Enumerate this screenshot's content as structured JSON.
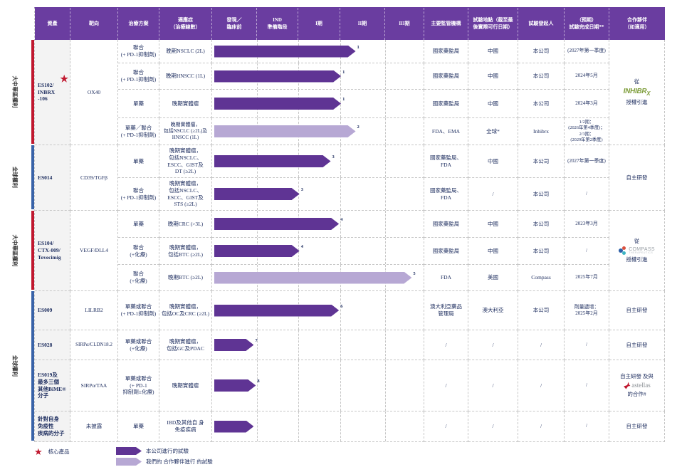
{
  "colors": {
    "header_bg": "#6a3da0",
    "company_arrow": "#5f3494",
    "partner_arrow": "#b7a8d4",
    "core_red": "#c0182f",
    "global_blue": "#3963a8"
  },
  "header": {
    "columns": [
      "資產",
      "靶向",
      "治療方案",
      "適應症\n（治療線數）",
      "發現／\n臨床前",
      "IND\n準備階段",
      "I期",
      "II期",
      "III期",
      "主要監管機構",
      "試驗地點（截至最\n後實際可行日期）",
      "試驗發起人",
      "（預期）\n試驗完成日期**",
      "合作夥伴\n（如適用）"
    ]
  },
  "side_groups": [
    {
      "label": "大中華區權利",
      "color": "#c0182f"
    },
    {
      "label": "全球權利",
      "color": "#3963a8"
    },
    {
      "label": "大中華區權利",
      "color": "#c0182f"
    },
    {
      "label": "全球權利",
      "color": "#3963a8"
    }
  ],
  "sections": [
    {
      "asset": "ES102/\nINBRX\n-106",
      "target": "OX40",
      "partner": {
        "pre": "從",
        "logo": "inhibrx",
        "post": "授權引進"
      },
      "trials": [
        {
          "regimen": "聯合\n(+ PD-1抑制劑)",
          "indication": "晚期NSCLC (2L)",
          "arrow": {
            "width_pct": 68,
            "type": "company",
            "note": "1"
          },
          "regulator": "國家藥監局",
          "location": "中國",
          "sponsor": "本公司",
          "completion": "(2027年第一季度)"
        },
        {
          "regimen": "聯合\n(+ PD-1抑制劑)",
          "indication": "晚期HNSCC (1L)",
          "arrow": {
            "width_pct": 61,
            "type": "company",
            "note": "1"
          },
          "regulator": "國家藥監局",
          "location": "中國",
          "sponsor": "本公司",
          "completion": "2024年5月"
        },
        {
          "regimen": "單藥",
          "indication": "晚期實體瘤",
          "arrow": {
            "width_pct": 61,
            "type": "company",
            "note": "1"
          },
          "regulator": "國家藥監局",
          "location": "中國",
          "sponsor": "本公司",
          "completion": "2024年3月"
        },
        {
          "regimen": "單藥／聯合\n(+ PD-1抑制劑)",
          "indication": "晚期實體瘤，\n包括NSCLC (≥2L)及\nHNSCC (1L)",
          "arrow": {
            "width_pct": 68,
            "type": "partner",
            "note": "2"
          },
          "regulator": "FDA、EMA",
          "location": "全球*",
          "sponsor": "Inhibrx",
          "completion": "1/2期：\n(2026年第4季度)；\n2/3期：\n(2029年第2季度)"
        }
      ]
    },
    {
      "asset": "ES014",
      "target": "CD39/TGFβ",
      "partner": {
        "text": "自主研發"
      },
      "trials": [
        {
          "regimen": "單藥",
          "indication": "晚期實體瘤，\n包括NSCLC、\nESCC、GIST及\nDT (≥2L)",
          "arrow": {
            "width_pct": 56,
            "type": "company",
            "note": "3"
          },
          "regulator": "國家藥監局、\nFDA",
          "location": "中國",
          "sponsor": "本公司",
          "completion": "(2027年第一季度)"
        },
        {
          "regimen": "聯合\n(+ PD-1抑制劑)",
          "indication": "晚期實體瘤，\n包括NSCLC、\nESCC、GIST及\nSTS (≥2L)",
          "arrow": {
            "width_pct": 41,
            "type": "company",
            "note": "3"
          },
          "regulator": "國家藥監局、\nFDA",
          "location": "/",
          "sponsor": "本公司",
          "completion": "/"
        }
      ]
    },
    {
      "asset": "ES104/\nCTX-009/\nTovecimig",
      "target": "VEGF/DLL4",
      "partner": {
        "pre": "從",
        "logo": "compass",
        "post": "授權引進"
      },
      "trials": [
        {
          "regimen": "單藥",
          "indication": "晚期CRC (>3L)",
          "arrow": {
            "width_pct": 60,
            "type": "company",
            "note": "4"
          },
          "regulator": "國家藥監局",
          "location": "中國",
          "sponsor": "本公司",
          "completion": "2023年3月"
        },
        {
          "regimen": "聯合\n(+化療)",
          "indication": "晚期實體瘤，\n包括BTC (≥2L)",
          "arrow": {
            "width_pct": 41,
            "type": "company",
            "note": "4"
          },
          "regulator": "國家藥監局",
          "location": "中國",
          "sponsor": "本公司",
          "completion": "/"
        },
        {
          "regimen": "聯合\n(+化療)",
          "indication": "晚期BTC (≥2L)",
          "arrow": {
            "width_pct": 95,
            "type": "partner",
            "note": "5"
          },
          "regulator": "FDA",
          "location": "美國",
          "sponsor": "Compass",
          "completion": "2025年7月"
        }
      ]
    },
    {
      "asset": "ES009",
      "target": "LILRB2",
      "partner": {
        "text": "自主研發"
      },
      "trials": [
        {
          "regimen": "單藥或聯合\n(+ PD-1抑制劑)",
          "indication": "晚期實體瘤，\n包括OC及CRC (≥2L)",
          "arrow": {
            "width_pct": 60,
            "type": "company",
            "note": "6"
          },
          "regulator": "澳大利亞藥品\n管理局",
          "location": "澳大利亞",
          "sponsor": "本公司",
          "completion": "劑量遞增：\n2025年2月"
        }
      ]
    },
    {
      "asset": "ES028",
      "target": "SIRPα/CLDN18.2",
      "partner": {
        "text": "自主研發"
      },
      "trials": [
        {
          "regimen": "單藥或聯合\n(+化療)",
          "indication": "晚期實體瘤，\n包括GC及PDAC",
          "arrow": {
            "width_pct": 19,
            "type": "company",
            "note": "7"
          },
          "regulator": "/",
          "location": "/",
          "sponsor": "/",
          "completion": "/"
        }
      ]
    },
    {
      "asset": "ES019及\n最多三個\n其他BiME®\n分子",
      "target": "SIRPα/TAA",
      "partner": {
        "pre": "自主研發 及與",
        "logo": "astellas",
        "post": "的合作#"
      },
      "trials": [
        {
          "regimen": "單藥或聯合\n(+ PD-1\n抑制劑±化療)",
          "indication": "晚期實體瘤",
          "arrow": {
            "width_pct": 20,
            "type": "company",
            "note": "8"
          },
          "regulator": "/",
          "location": "/",
          "sponsor": "/",
          "completion": "/"
        }
      ]
    },
    {
      "asset": "針對自身\n免疫性\n疾病的分子",
      "target": "未披露",
      "partner": {
        "text": "自主研發"
      },
      "trials": [
        {
          "regimen": "單藥",
          "indication": "IBD及其他自 身\n免疫疾病",
          "arrow": {
            "width_pct": 19,
            "type": "company"
          },
          "regulator": "/",
          "location": "/",
          "sponsor": "/",
          "completion": "/"
        }
      ]
    }
  ],
  "partner_logos": {
    "inhibrx": {
      "text": "INHIBR",
      "sub": "X"
    },
    "compass": {
      "name": "COMPASS",
      "sub": "THERAPEUTICS"
    },
    "astellas": {
      "name": "astellas"
    }
  },
  "legend": {
    "core_product": "核心產品",
    "company_trial": "本公司進行的試驗",
    "partner_trial": "我們的 合作夥伴進行 的試驗"
  }
}
